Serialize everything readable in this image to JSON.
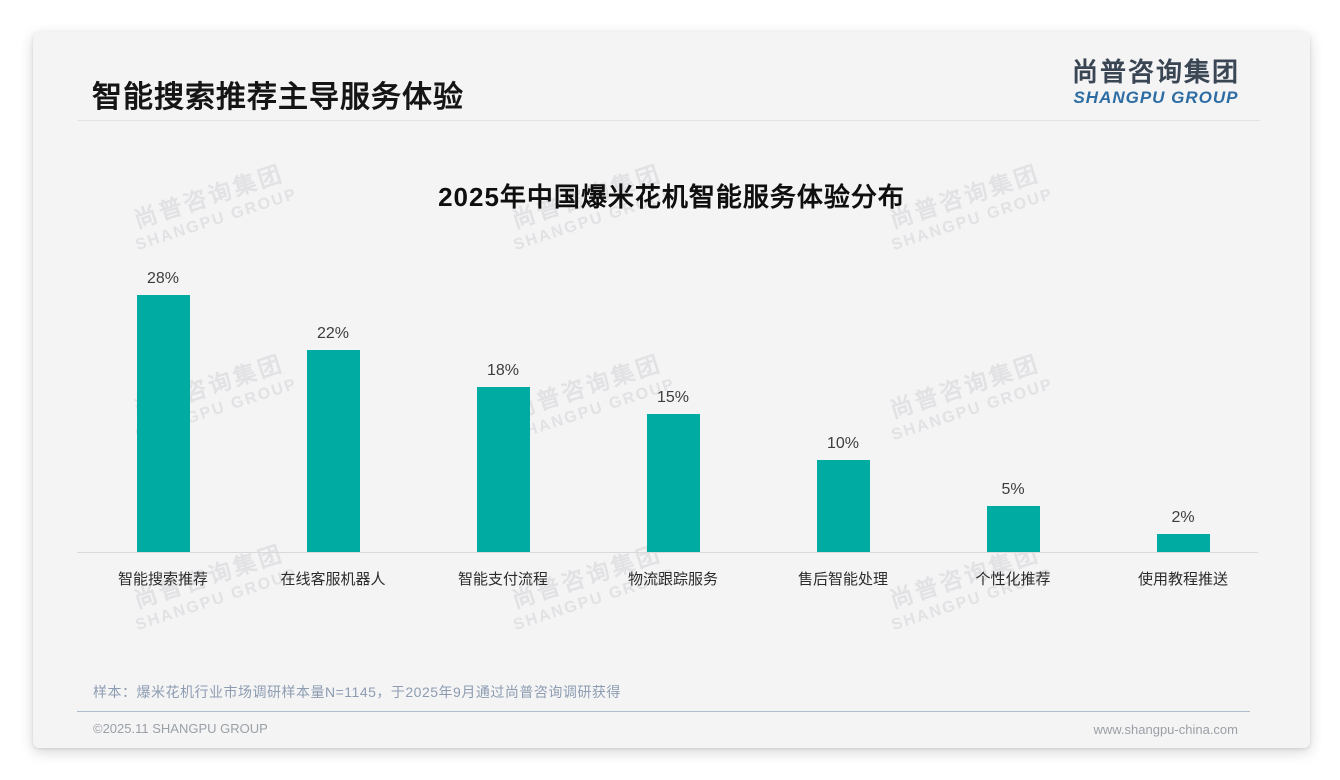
{
  "page": {
    "header": {
      "title": "智能搜索推荐主导服务体验"
    },
    "logo": {
      "cn": "尚普咨询集团",
      "en": "SHANGPU GROUP"
    },
    "watermark": {
      "cn": "尚普咨询集团",
      "en": "SHANGPU GROUP"
    },
    "footnote": "样本：爆米花机行业市场调研样本量N=1145，于2025年9月通过尚普咨询调研获得",
    "footer": {
      "left": "©2025.11 SHANGPU GROUP",
      "right": "www.shangpu-china.com"
    }
  },
  "chart_data": {
    "type": "bar",
    "title": "2025年中国爆米花机智能服务体验分布",
    "categories": [
      "智能搜索推荐",
      "在线客服机器人",
      "智能支付流程",
      "物流跟踪服务",
      "售后智能处理",
      "个性化推荐",
      "使用教程推送"
    ],
    "values": [
      28,
      22,
      18,
      15,
      10,
      5,
      2
    ],
    "value_labels": [
      "28%",
      "22%",
      "18%",
      "15%",
      "10%",
      "5%",
      "2%"
    ],
    "unit": "%",
    "ylim": [
      0,
      30
    ],
    "grid": false,
    "legend": false,
    "bar_color": "#00ACA2"
  },
  "colors": {
    "accent_teal": "#00ACA2",
    "logo_blue": "#2E6DA4",
    "logo_dark": "#3A4654",
    "card_bg": "#F4F4F5",
    "watermark": "#E2E2E5",
    "note_text": "#8D9CB1",
    "footer_text": "#9AA0A6",
    "axis_line": "#D9D9D9",
    "footer_divider": "#AEBDCC"
  }
}
